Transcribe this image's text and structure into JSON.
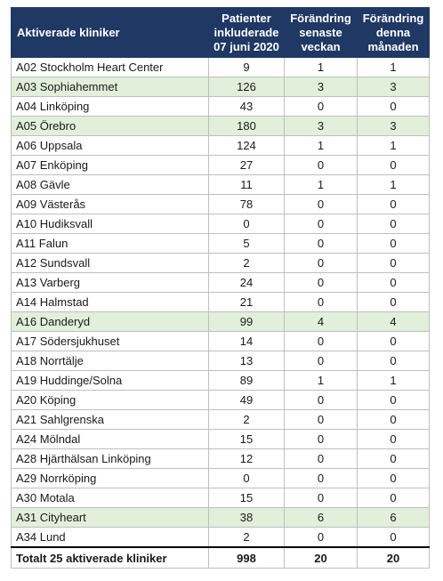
{
  "header": {
    "col1": "Aktiverade kliniker",
    "col2": [
      "Patienter",
      "inkluderade",
      "07 juni 2020"
    ],
    "col3": [
      "Förändring",
      "senaste",
      "veckan"
    ],
    "col4": [
      "Förändring",
      "denna",
      "månaden"
    ]
  },
  "rows": [
    {
      "name": "A02 Stockholm Heart Center",
      "patients": "9",
      "week": "1",
      "month": "1",
      "highlight": false
    },
    {
      "name": "A03 Sophiahemmet",
      "patients": "126",
      "week": "3",
      "month": "3",
      "highlight": true
    },
    {
      "name": "A04 Linköping",
      "patients": "43",
      "week": "0",
      "month": "0",
      "highlight": false
    },
    {
      "name": "A05 Örebro",
      "patients": "180",
      "week": "3",
      "month": "3",
      "highlight": true
    },
    {
      "name": "A06 Uppsala",
      "patients": "124",
      "week": "1",
      "month": "1",
      "highlight": false
    },
    {
      "name": "A07 Enköping",
      "patients": "27",
      "week": "0",
      "month": "0",
      "highlight": false
    },
    {
      "name": "A08 Gävle",
      "patients": "11",
      "week": "1",
      "month": "1",
      "highlight": false
    },
    {
      "name": "A09 Västerås",
      "patients": "78",
      "week": "0",
      "month": "0",
      "highlight": false
    },
    {
      "name": "A10 Hudiksvall",
      "patients": "0",
      "week": "0",
      "month": "0",
      "highlight": false
    },
    {
      "name": "A11 Falun",
      "patients": "5",
      "week": "0",
      "month": "0",
      "highlight": false
    },
    {
      "name": "A12 Sundsvall",
      "patients": "2",
      "week": "0",
      "month": "0",
      "highlight": false
    },
    {
      "name": "A13 Varberg",
      "patients": "24",
      "week": "0",
      "month": "0",
      "highlight": false
    },
    {
      "name": "A14 Halmstad",
      "patients": "21",
      "week": "0",
      "month": "0",
      "highlight": false
    },
    {
      "name": "A16 Danderyd",
      "patients": "99",
      "week": "4",
      "month": "4",
      "highlight": true
    },
    {
      "name": "A17 Södersjukhuset",
      "patients": "14",
      "week": "0",
      "month": "0",
      "highlight": false
    },
    {
      "name": "A18 Norrtälje",
      "patients": "13",
      "week": "0",
      "month": "0",
      "highlight": false
    },
    {
      "name": "A19 Huddinge/Solna",
      "patients": "89",
      "week": "1",
      "month": "1",
      "highlight": false
    },
    {
      "name": "A20 Köping",
      "patients": "49",
      "week": "0",
      "month": "0",
      "highlight": false
    },
    {
      "name": "A21 Sahlgrenska",
      "patients": "2",
      "week": "0",
      "month": "0",
      "highlight": false
    },
    {
      "name": "A24 Mölndal",
      "patients": "15",
      "week": "0",
      "month": "0",
      "highlight": false
    },
    {
      "name": "A28 Hjärthälsan Linköping",
      "patients": "12",
      "week": "0",
      "month": "0",
      "highlight": false
    },
    {
      "name": "A29 Norrköping",
      "patients": "0",
      "week": "0",
      "month": "0",
      "highlight": false
    },
    {
      "name": "A30 Motala",
      "patients": "15",
      "week": "0",
      "month": "0",
      "highlight": false
    },
    {
      "name": "A31 Cityheart",
      "patients": "38",
      "week": "6",
      "month": "6",
      "highlight": true
    },
    {
      "name": "A34 Lund",
      "patients": "2",
      "week": "0",
      "month": "0",
      "highlight": false
    }
  ],
  "total": {
    "name": "Totalt 25 aktiverade kliniker",
    "patients": "998",
    "week": "20",
    "month": "20"
  },
  "colors": {
    "header_bg": "#1f3864",
    "highlight_bg": "#e2efda"
  }
}
